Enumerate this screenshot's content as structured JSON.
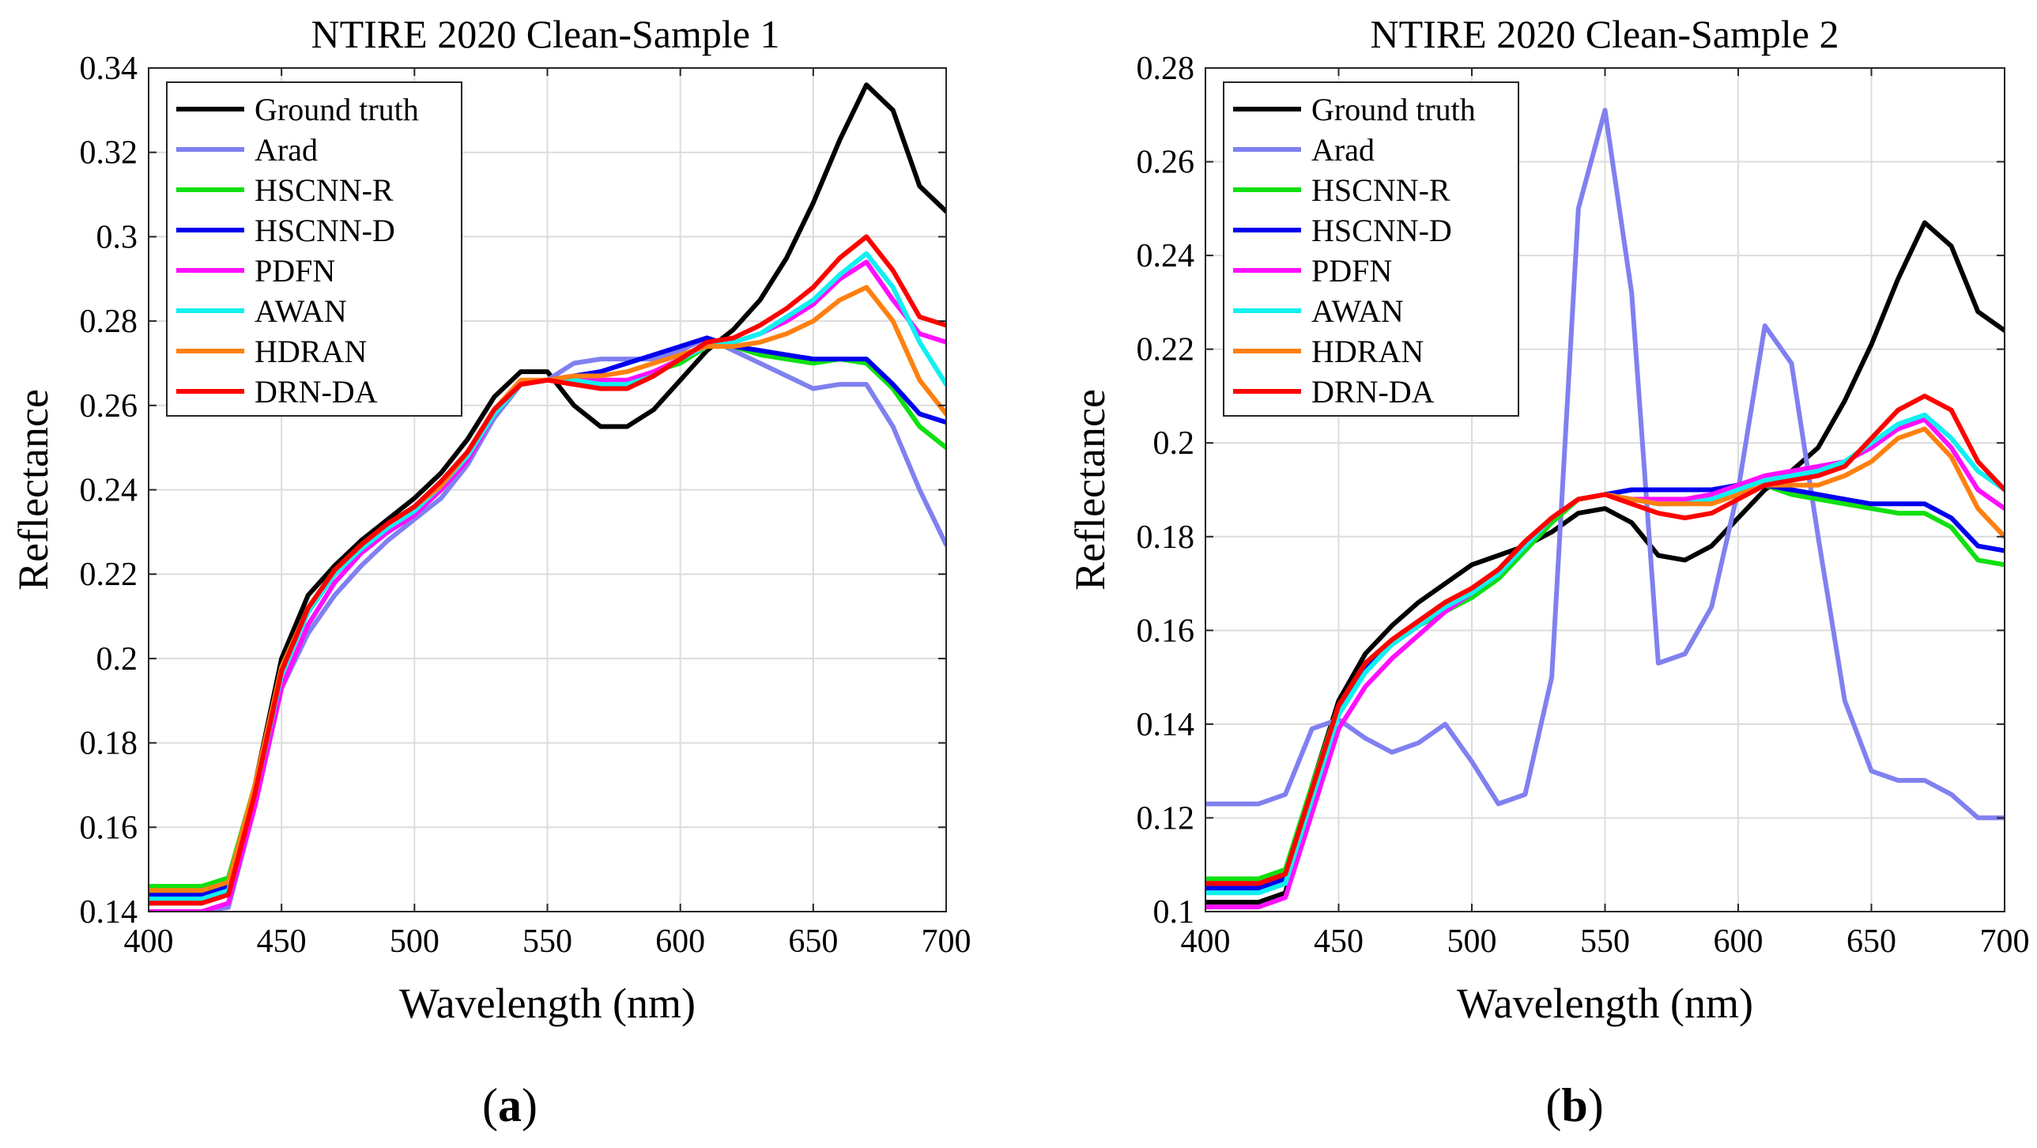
{
  "figure": {
    "panel_a_label": {
      "open": "(",
      "letter": "a",
      "close": ")"
    },
    "panel_b_label": {
      "open": "(",
      "letter": "b",
      "close": ")"
    }
  },
  "colors": {
    "Ground truth": "#000000",
    "Arad": "#8080f0",
    "HSCNN-R": "#10e010",
    "HSCNN-D": "#0000ee",
    "PDFN": "#ff10ff",
    "AWAN": "#10f0f0",
    "HDRAN": "#ff8010",
    "DRN-DA": "#ff0000"
  },
  "chart_data": [
    {
      "type": "line",
      "title": "NTIRE 2020 Clean-Sample 1",
      "xlabel": "Wavelength (nm)",
      "ylabel": "Reflectance",
      "xlim": [
        400,
        700
      ],
      "ylim": [
        0.14,
        0.34
      ],
      "xticks": [
        400,
        450,
        500,
        550,
        600,
        650,
        700
      ],
      "xtick_labels": [
        "400",
        "450",
        "500",
        "550",
        "600",
        "650",
        "700"
      ],
      "yticks": [
        0.14,
        0.16,
        0.18,
        0.2,
        0.22,
        0.24,
        0.26,
        0.28,
        0.3,
        0.32,
        0.34
      ],
      "ytick_labels": [
        "0.14",
        "0.16",
        "0.18",
        "0.2",
        "0.22",
        "0.24",
        "0.26",
        "0.28",
        "0.3",
        "0.32",
        "0.34"
      ],
      "grid": true,
      "legend_position": "top-left",
      "x": [
        400,
        410,
        420,
        430,
        440,
        450,
        460,
        470,
        480,
        490,
        500,
        510,
        520,
        530,
        540,
        550,
        560,
        570,
        580,
        590,
        600,
        610,
        620,
        630,
        640,
        650,
        660,
        670,
        680,
        690,
        700
      ],
      "series": [
        {
          "name": "Ground truth",
          "values": [
            0.142,
            0.142,
            0.142,
            0.145,
            0.17,
            0.2,
            0.215,
            0.222,
            0.228,
            0.233,
            0.238,
            0.244,
            0.252,
            0.262,
            0.268,
            0.268,
            0.26,
            0.255,
            0.255,
            0.259,
            0.266,
            0.273,
            0.278,
            0.285,
            0.295,
            0.308,
            0.323,
            0.336,
            0.33,
            0.312,
            0.306
          ]
        },
        {
          "name": "Arad",
          "values": [
            0.14,
            0.14,
            0.14,
            0.141,
            0.165,
            0.193,
            0.206,
            0.215,
            0.222,
            0.228,
            0.233,
            0.238,
            0.246,
            0.257,
            0.265,
            0.266,
            0.27,
            0.271,
            0.271,
            0.271,
            0.273,
            0.276,
            0.273,
            0.27,
            0.267,
            0.264,
            0.265,
            0.265,
            0.255,
            0.24,
            0.227
          ]
        },
        {
          "name": "HSCNN-R",
          "values": [
            0.146,
            0.146,
            0.146,
            0.148,
            0.17,
            0.197,
            0.212,
            0.221,
            0.227,
            0.231,
            0.235,
            0.24,
            0.248,
            0.258,
            0.265,
            0.266,
            0.266,
            0.264,
            0.265,
            0.268,
            0.27,
            0.274,
            0.274,
            0.272,
            0.271,
            0.27,
            0.271,
            0.27,
            0.264,
            0.255,
            0.25
          ]
        },
        {
          "name": "HSCNN-D",
          "values": [
            0.144,
            0.144,
            0.144,
            0.146,
            0.169,
            0.197,
            0.211,
            0.22,
            0.226,
            0.231,
            0.235,
            0.24,
            0.248,
            0.258,
            0.265,
            0.266,
            0.267,
            0.268,
            0.27,
            0.272,
            0.274,
            0.276,
            0.274,
            0.273,
            0.272,
            0.271,
            0.271,
            0.271,
            0.265,
            0.258,
            0.256
          ]
        },
        {
          "name": "PDFN",
          "values": [
            0.14,
            0.14,
            0.14,
            0.142,
            0.165,
            0.193,
            0.208,
            0.218,
            0.225,
            0.23,
            0.234,
            0.24,
            0.247,
            0.258,
            0.265,
            0.266,
            0.267,
            0.266,
            0.266,
            0.268,
            0.271,
            0.274,
            0.275,
            0.277,
            0.28,
            0.284,
            0.29,
            0.294,
            0.285,
            0.277,
            0.275
          ]
        },
        {
          "name": "AWAN",
          "values": [
            0.143,
            0.143,
            0.143,
            0.145,
            0.168,
            0.196,
            0.211,
            0.22,
            0.226,
            0.231,
            0.235,
            0.241,
            0.248,
            0.258,
            0.265,
            0.266,
            0.266,
            0.265,
            0.265,
            0.267,
            0.271,
            0.274,
            0.275,
            0.277,
            0.281,
            0.285,
            0.291,
            0.296,
            0.288,
            0.275,
            0.265
          ]
        },
        {
          "name": "HDRAN",
          "values": [
            0.145,
            0.145,
            0.145,
            0.147,
            0.17,
            0.198,
            0.212,
            0.221,
            0.227,
            0.232,
            0.236,
            0.241,
            0.249,
            0.259,
            0.266,
            0.266,
            0.267,
            0.267,
            0.268,
            0.27,
            0.272,
            0.274,
            0.274,
            0.275,
            0.277,
            0.28,
            0.285,
            0.288,
            0.28,
            0.266,
            0.258
          ]
        },
        {
          "name": "DRN-DA",
          "values": [
            0.142,
            0.142,
            0.142,
            0.144,
            0.168,
            0.197,
            0.212,
            0.221,
            0.227,
            0.232,
            0.236,
            0.242,
            0.249,
            0.259,
            0.265,
            0.266,
            0.265,
            0.264,
            0.264,
            0.267,
            0.271,
            0.275,
            0.276,
            0.279,
            0.283,
            0.288,
            0.295,
            0.3,
            0.292,
            0.281,
            0.279
          ]
        }
      ]
    },
    {
      "type": "line",
      "title": "NTIRE 2020 Clean-Sample 2",
      "xlabel": "Wavelength (nm)",
      "ylabel": "Reflectance",
      "xlim": [
        400,
        700
      ],
      "ylim": [
        0.1,
        0.28
      ],
      "xticks": [
        400,
        450,
        500,
        550,
        600,
        650,
        700
      ],
      "xtick_labels": [
        "400",
        "450",
        "500",
        "550",
        "600",
        "650",
        "700"
      ],
      "yticks": [
        0.1,
        0.12,
        0.14,
        0.16,
        0.18,
        0.2,
        0.22,
        0.24,
        0.26,
        0.28
      ],
      "ytick_labels": [
        "0.1",
        "0.12",
        "0.14",
        "0.16",
        "0.18",
        "0.2",
        "0.22",
        "0.24",
        "0.26",
        "0.28"
      ],
      "grid": true,
      "legend_position": "top-left",
      "x": [
        400,
        410,
        420,
        430,
        440,
        450,
        460,
        470,
        480,
        490,
        500,
        510,
        520,
        530,
        540,
        550,
        560,
        570,
        580,
        590,
        600,
        610,
        620,
        630,
        640,
        650,
        660,
        670,
        680,
        690,
        700
      ],
      "series": [
        {
          "name": "Ground truth",
          "values": [
            0.102,
            0.102,
            0.102,
            0.104,
            0.127,
            0.145,
            0.155,
            0.161,
            0.166,
            0.17,
            0.174,
            0.176,
            0.178,
            0.181,
            0.185,
            0.186,
            0.183,
            0.176,
            0.175,
            0.178,
            0.184,
            0.19,
            0.194,
            0.199,
            0.209,
            0.221,
            0.235,
            0.247,
            0.242,
            0.228,
            0.224
          ]
        },
        {
          "name": "Arad",
          "values": [
            0.123,
            0.123,
            0.123,
            0.125,
            0.139,
            0.141,
            0.137,
            0.134,
            0.136,
            0.14,
            0.132,
            0.123,
            0.125,
            0.15,
            0.25,
            0.271,
            0.232,
            0.153,
            0.155,
            0.165,
            0.19,
            0.225,
            0.217,
            0.18,
            0.145,
            0.13,
            0.128,
            0.128,
            0.125,
            0.12,
            0.12
          ]
        },
        {
          "name": "HSCNN-R",
          "values": [
            0.107,
            0.107,
            0.107,
            0.109,
            0.127,
            0.144,
            0.152,
            0.157,
            0.161,
            0.164,
            0.167,
            0.171,
            0.177,
            0.183,
            0.188,
            0.189,
            0.19,
            0.19,
            0.19,
            0.19,
            0.19,
            0.191,
            0.189,
            0.188,
            0.187,
            0.186,
            0.185,
            0.185,
            0.182,
            0.175,
            0.174
          ]
        },
        {
          "name": "HSCNN-D",
          "values": [
            0.105,
            0.105,
            0.105,
            0.107,
            0.125,
            0.143,
            0.152,
            0.157,
            0.161,
            0.165,
            0.168,
            0.172,
            0.178,
            0.184,
            0.188,
            0.189,
            0.19,
            0.19,
            0.19,
            0.19,
            0.191,
            0.191,
            0.19,
            0.189,
            0.188,
            0.187,
            0.187,
            0.187,
            0.184,
            0.178,
            0.177
          ]
        },
        {
          "name": "PDFN",
          "values": [
            0.101,
            0.101,
            0.101,
            0.103,
            0.121,
            0.139,
            0.148,
            0.154,
            0.159,
            0.164,
            0.168,
            0.172,
            0.178,
            0.184,
            0.188,
            0.189,
            0.188,
            0.188,
            0.188,
            0.189,
            0.191,
            0.193,
            0.194,
            0.195,
            0.196,
            0.199,
            0.203,
            0.205,
            0.199,
            0.19,
            0.186
          ]
        },
        {
          "name": "AWAN",
          "values": [
            0.104,
            0.104,
            0.104,
            0.106,
            0.124,
            0.142,
            0.151,
            0.157,
            0.161,
            0.165,
            0.168,
            0.172,
            0.178,
            0.184,
            0.188,
            0.189,
            0.188,
            0.187,
            0.187,
            0.188,
            0.19,
            0.192,
            0.193,
            0.194,
            0.196,
            0.2,
            0.204,
            0.206,
            0.201,
            0.194,
            0.19
          ]
        },
        {
          "name": "HDRAN",
          "values": [
            0.106,
            0.106,
            0.106,
            0.108,
            0.126,
            0.144,
            0.153,
            0.158,
            0.162,
            0.166,
            0.169,
            0.173,
            0.179,
            0.184,
            0.188,
            0.189,
            0.188,
            0.187,
            0.187,
            0.187,
            0.189,
            0.191,
            0.191,
            0.191,
            0.193,
            0.196,
            0.201,
            0.203,
            0.197,
            0.186,
            0.18
          ]
        },
        {
          "name": "DRN-DA",
          "values": [
            0.106,
            0.106,
            0.106,
            0.108,
            0.126,
            0.144,
            0.153,
            0.158,
            0.162,
            0.166,
            0.169,
            0.173,
            0.179,
            0.184,
            0.188,
            0.189,
            0.187,
            0.185,
            0.184,
            0.185,
            0.188,
            0.191,
            0.192,
            0.193,
            0.195,
            0.201,
            0.207,
            0.21,
            0.207,
            0.196,
            0.19
          ]
        }
      ]
    }
  ]
}
